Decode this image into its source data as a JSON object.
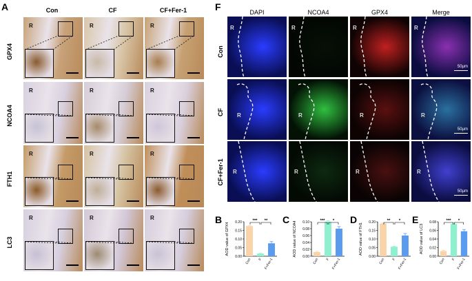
{
  "panels": {
    "A": "A",
    "F": "F",
    "B": "B",
    "C": "C",
    "D": "D",
    "E": "E"
  },
  "ihc": {
    "columns": [
      "Con",
      "CF",
      "CF+Fer-1"
    ],
    "rows": [
      "GPX4",
      "NCOA4",
      "FTH1",
      "LC3"
    ],
    "region_label": "R"
  },
  "fluor": {
    "columns": [
      "DAPI",
      "NCOA4",
      "GPX4",
      "Merge"
    ],
    "rows": [
      "Con",
      "CF",
      "CF+Fer-1"
    ],
    "region_label": "R",
    "scale_label": "50μm"
  },
  "colors": {
    "con_bar": "#f9d4a8",
    "f_bar": "#8ff0cf",
    "fer_bar": "#5b9bef",
    "dapi": "#1428c8",
    "ncoa4": "#2ab33a",
    "gpx4": "#d22020"
  },
  "chart_data": [
    {
      "type": "bar",
      "panel": "B",
      "ylabel": "AOD value of GPX4",
      "categories": [
        "Con",
        "F",
        "F+Fer-1"
      ],
      "values": [
        0.175,
        0.015,
        0.075
      ],
      "errors": [
        0.003,
        0.002,
        0.01
      ],
      "ylim": [
        0,
        0.2
      ],
      "yticks": [
        "0.00",
        "0.05",
        "0.10",
        "0.15",
        "0.20"
      ],
      "significance": [
        {
          "pair": [
            0,
            1
          ],
          "label": "***"
        },
        {
          "pair": [
            1,
            2
          ],
          "label": "**"
        }
      ]
    },
    {
      "type": "bar",
      "panel": "C",
      "ylabel": "AOD value of NCOA4",
      "categories": [
        "Con",
        "F",
        "F+Fer-1"
      ],
      "values": [
        0.012,
        0.1,
        0.08
      ],
      "errors": [
        0.002,
        0.003,
        0.006
      ],
      "ylim": [
        0,
        0.1
      ],
      "yticks": [
        "0.00",
        "0.02",
        "0.04",
        "0.06",
        "0.08",
        "0.10"
      ],
      "significance": [
        {
          "pair": [
            0,
            1
          ],
          "label": "***"
        },
        {
          "pair": [
            1,
            2
          ],
          "label": "*"
        }
      ]
    },
    {
      "type": "bar",
      "panel": "D",
      "ylabel": "AOD value of FTH1",
      "categories": [
        "Con",
        "F",
        "F+Fer-1"
      ],
      "values": [
        0.19,
        0.055,
        0.12
      ],
      "errors": [
        0.003,
        0.003,
        0.012
      ],
      "ylim": [
        0,
        0.2
      ],
      "yticks": [
        "0.00",
        "0.05",
        "0.10",
        "0.15",
        "0.20"
      ],
      "significance": [
        {
          "pair": [
            0,
            1
          ],
          "label": "**"
        },
        {
          "pair": [
            1,
            2
          ],
          "label": "*"
        }
      ]
    },
    {
      "type": "bar",
      "panel": "E",
      "ylabel": "AOD value of LC3",
      "categories": [
        "Con",
        "F",
        "F+Fer-1"
      ],
      "values": [
        0.012,
        0.075,
        0.058
      ],
      "errors": [
        0.002,
        0.002,
        0.004
      ],
      "ylim": [
        0,
        0.08
      ],
      "yticks": [
        "0.00",
        "0.02",
        "0.04",
        "0.06",
        "0.08"
      ],
      "significance": [
        {
          "pair": [
            0,
            1
          ],
          "label": "***"
        },
        {
          "pair": [
            1,
            2
          ],
          "label": "*"
        }
      ]
    }
  ]
}
